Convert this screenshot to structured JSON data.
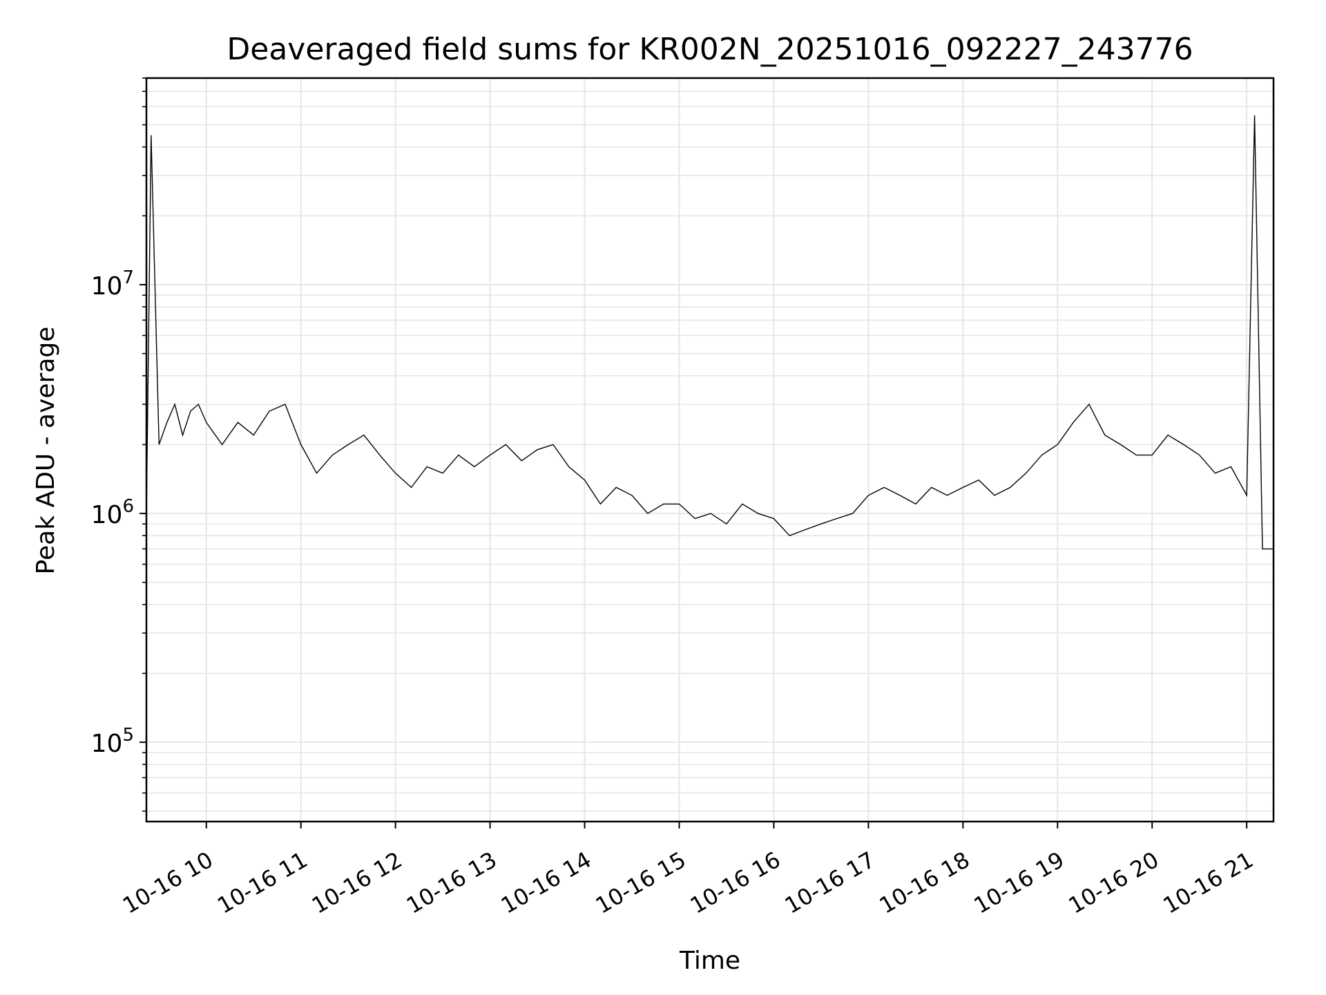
{
  "chart_data": {
    "type": "line",
    "title": "Deaveraged field sums for KR002N_20251016_092227_243776",
    "xlabel": "Time",
    "ylabel": "Peak ADU - average",
    "yscale": "log",
    "xlim": [
      "2025-10-16 09:22",
      "2025-10-16 21:17"
    ],
    "ylim": [
      45000,
      80000000
    ],
    "grid": true,
    "line_color": "#000000",
    "grid_color": "#e6e6e6",
    "x_tick_labels": [
      "10-16 10",
      "10-16 11",
      "10-16 12",
      "10-16 13",
      "10-16 14",
      "10-16 15",
      "10-16 16",
      "10-16 17",
      "10-16 18",
      "10-16 19",
      "10-16 20",
      "10-16 21"
    ],
    "x_tick_values": [
      "2025-10-16 10:00",
      "2025-10-16 11:00",
      "2025-10-16 12:00",
      "2025-10-16 13:00",
      "2025-10-16 14:00",
      "2025-10-16 15:00",
      "2025-10-16 16:00",
      "2025-10-16 17:00",
      "2025-10-16 18:00",
      "2025-10-16 19:00",
      "2025-10-16 20:00",
      "2025-10-16 21:00"
    ],
    "y_ticks": [
      {
        "value": 100000,
        "base": "10",
        "exp": "5"
      },
      {
        "value": 1000000,
        "base": "10",
        "exp": "6"
      },
      {
        "value": 10000000,
        "base": "10",
        "exp": "7"
      }
    ],
    "series": [
      {
        "x": [
          "2025-10-16 09:22",
          "2025-10-16 09:25",
          "2025-10-16 09:30",
          "2025-10-16 09:35",
          "2025-10-16 09:40",
          "2025-10-16 09:45",
          "2025-10-16 09:50",
          "2025-10-16 09:55",
          "2025-10-16 10:00",
          "2025-10-16 10:10",
          "2025-10-16 10:20",
          "2025-10-16 10:30",
          "2025-10-16 10:40",
          "2025-10-16 10:50",
          "2025-10-16 11:00",
          "2025-10-16 11:10",
          "2025-10-16 11:20",
          "2025-10-16 11:30",
          "2025-10-16 11:40",
          "2025-10-16 11:50",
          "2025-10-16 12:00",
          "2025-10-16 12:10",
          "2025-10-16 12:20",
          "2025-10-16 12:30",
          "2025-10-16 12:40",
          "2025-10-16 12:50",
          "2025-10-16 13:00",
          "2025-10-16 13:10",
          "2025-10-16 13:20",
          "2025-10-16 13:30",
          "2025-10-16 13:40",
          "2025-10-16 13:50",
          "2025-10-16 14:00",
          "2025-10-16 14:10",
          "2025-10-16 14:20",
          "2025-10-16 14:30",
          "2025-10-16 14:40",
          "2025-10-16 14:50",
          "2025-10-16 15:00",
          "2025-10-16 15:10",
          "2025-10-16 15:20",
          "2025-10-16 15:30",
          "2025-10-16 15:40",
          "2025-10-16 15:50",
          "2025-10-16 16:00",
          "2025-10-16 16:10",
          "2025-10-16 16:20",
          "2025-10-16 16:30",
          "2025-10-16 16:40",
          "2025-10-16 16:50",
          "2025-10-16 17:00",
          "2025-10-16 17:10",
          "2025-10-16 17:20",
          "2025-10-16 17:30",
          "2025-10-16 17:40",
          "2025-10-16 17:50",
          "2025-10-16 18:00",
          "2025-10-16 18:10",
          "2025-10-16 18:20",
          "2025-10-16 18:30",
          "2025-10-16 18:40",
          "2025-10-16 18:50",
          "2025-10-16 19:00",
          "2025-10-16 19:10",
          "2025-10-16 19:20",
          "2025-10-16 19:30",
          "2025-10-16 19:40",
          "2025-10-16 19:50",
          "2025-10-16 20:00",
          "2025-10-16 20:10",
          "2025-10-16 20:20",
          "2025-10-16 20:30",
          "2025-10-16 20:40",
          "2025-10-16 20:50",
          "2025-10-16 21:00",
          "2025-10-16 21:05",
          "2025-10-16 21:10",
          "2025-10-16 21:17"
        ],
        "y": [
          1000000,
          45000000,
          2000000,
          2500000,
          3000000,
          2200000,
          2800000,
          3000000,
          2500000,
          2000000,
          2500000,
          2200000,
          2800000,
          3000000,
          2000000,
          1500000,
          1800000,
          2000000,
          2200000,
          1800000,
          1500000,
          1300000,
          1600000,
          1500000,
          1800000,
          1600000,
          1800000,
          2000000,
          1700000,
          1900000,
          2000000,
          1600000,
          1400000,
          1100000,
          1300000,
          1200000,
          1000000,
          1100000,
          1100000,
          950000,
          1000000,
          900000,
          1100000,
          1000000,
          950000,
          800000,
          850000,
          900000,
          950000,
          1000000,
          1200000,
          1300000,
          1200000,
          1100000,
          1300000,
          1200000,
          1300000,
          1400000,
          1200000,
          1300000,
          1500000,
          1800000,
          2000000,
          2500000,
          3000000,
          2200000,
          2000000,
          1800000,
          1800000,
          2200000,
          2000000,
          1800000,
          1500000,
          1600000,
          1200000,
          55000000,
          700000,
          700000
        ]
      }
    ]
  }
}
